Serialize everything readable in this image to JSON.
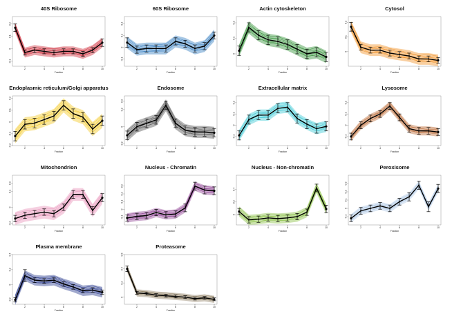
{
  "figure": {
    "xlabel": "Fraction",
    "x_ticks": [
      2,
      4,
      6,
      8,
      10
    ],
    "y_ticks_default": [
      "-0.1",
      "0",
      "0.1",
      "0.2"
    ]
  },
  "chart_data": [
    {
      "type": "line",
      "title": "40S Ribosome",
      "color": "#cc1f2e",
      "x": [
        1,
        2,
        3,
        4,
        5,
        6,
        7,
        8,
        9,
        10
      ],
      "values": [
        0.17,
        -0.03,
        -0.01,
        -0.02,
        -0.03,
        -0.02,
        -0.02,
        -0.04,
        -0.01,
        0.05
      ],
      "error": [
        0.03,
        0.02,
        0.02,
        0.02,
        0.02,
        0.02,
        0.02,
        0.02,
        0.02,
        0.03
      ],
      "spread": 0.04,
      "ylim": [
        -0.14,
        0.26
      ],
      "y_ticks": [
        "-0.1",
        "0",
        "0.1",
        "0.2"
      ]
    },
    {
      "type": "line",
      "title": "60S Ribosome",
      "color": "#2a77bd",
      "x": [
        1,
        2,
        3,
        4,
        5,
        6,
        7,
        8,
        9,
        10
      ],
      "values": [
        0.04,
        -0.02,
        -0.01,
        -0.01,
        -0.01,
        0.05,
        0.03,
        -0.01,
        0.01,
        0.1
      ],
      "error": [
        0.04,
        0.03,
        0.03,
        0.03,
        0.03,
        0.03,
        0.03,
        0.03,
        0.03,
        0.03
      ],
      "spread": 0.05,
      "ylim": [
        -0.16,
        0.26
      ],
      "y_ticks": [
        "-0.1",
        "0",
        "0.1",
        "0.2"
      ]
    },
    {
      "type": "line",
      "title": "Actin cytoskeleton",
      "color": "#258a2a",
      "x": [
        1,
        2,
        3,
        4,
        5,
        6,
        7,
        8,
        9,
        10
      ],
      "values": [
        0.02,
        0.17,
        0.12,
        0.09,
        0.08,
        0.06,
        0.03,
        0.0,
        0.01,
        -0.02
      ],
      "error": [
        0.03,
        0.03,
        0.03,
        0.03,
        0.03,
        0.03,
        0.03,
        0.03,
        0.03,
        0.03
      ],
      "spread": 0.04,
      "ylim": [
        -0.08,
        0.24
      ],
      "y_ticks": [
        "0",
        "0.1",
        "0.2"
      ]
    },
    {
      "type": "line",
      "title": "Cytosol",
      "color": "#f08a18",
      "x": [
        1,
        2,
        3,
        4,
        5,
        6,
        7,
        8,
        9,
        10
      ],
      "values": [
        0.17,
        0.03,
        0.01,
        0.01,
        -0.01,
        -0.02,
        -0.03,
        -0.05,
        -0.05,
        -0.06
      ],
      "error": [
        0.03,
        0.02,
        0.02,
        0.02,
        0.02,
        0.02,
        0.02,
        0.02,
        0.02,
        0.02
      ],
      "spread": 0.04,
      "ylim": [
        -0.1,
        0.24
      ],
      "y_ticks": [
        "0",
        "0.1",
        "0.2"
      ]
    },
    {
      "type": "line",
      "title": "Endoplasmic reticulum/Golgi apparatus",
      "color": "#f3c514",
      "x": [
        1,
        2,
        3,
        4,
        5,
        6,
        7,
        8,
        9,
        10
      ],
      "values": [
        -0.12,
        -0.02,
        -0.01,
        0.02,
        0.05,
        0.14,
        0.07,
        0.04,
        -0.06,
        0.01
      ],
      "error": [
        0.04,
        0.04,
        0.04,
        0.04,
        0.04,
        0.04,
        0.04,
        0.04,
        0.04,
        0.04
      ],
      "spread": 0.06,
      "ylim": [
        -0.2,
        0.22
      ],
      "y_ticks": [
        "-0.2",
        "-0.1",
        "0",
        "0.1",
        "0.2"
      ]
    },
    {
      "type": "line",
      "title": "Endosome",
      "color": "#4a4a4a",
      "x": [
        1,
        2,
        3,
        4,
        5,
        6,
        7,
        8,
        9,
        10
      ],
      "values": [
        -0.1,
        0.0,
        0.04,
        0.08,
        0.25,
        0.04,
        -0.04,
        -0.06,
        -0.06,
        -0.07
      ],
      "error": [
        0.05,
        0.05,
        0.05,
        0.05,
        0.05,
        0.05,
        0.05,
        0.05,
        0.05,
        0.05
      ],
      "spread": 0.07,
      "ylim": [
        -0.22,
        0.36
      ],
      "y_ticks": [
        "-0.2",
        "0",
        "0.2",
        "0.3"
      ]
    },
    {
      "type": "line",
      "title": "Extracellular matrix",
      "color": "#2ec4d2",
      "x": [
        1,
        2,
        3,
        4,
        5,
        6,
        7,
        8,
        9,
        10
      ],
      "values": [
        -0.09,
        0.05,
        0.09,
        0.09,
        0.15,
        0.16,
        0.06,
        0.01,
        -0.03,
        -0.01
      ],
      "error": [
        0.04,
        0.04,
        0.04,
        0.04,
        0.04,
        0.04,
        0.04,
        0.04,
        0.04,
        0.04
      ],
      "spread": 0.05,
      "ylim": [
        -0.18,
        0.26
      ],
      "y_ticks": [
        "-0.1",
        "0",
        "0.1",
        "0.2"
      ]
    },
    {
      "type": "line",
      "title": "Lysosome",
      "color": "#b8632c",
      "x": [
        1,
        2,
        3,
        4,
        5,
        6,
        7,
        8,
        9,
        10
      ],
      "values": [
        -0.1,
        0.0,
        0.06,
        0.1,
        0.17,
        0.07,
        -0.03,
        -0.05,
        -0.05,
        -0.06
      ],
      "error": [
        0.03,
        0.03,
        0.03,
        0.03,
        0.03,
        0.03,
        0.03,
        0.03,
        0.03,
        0.03
      ],
      "spread": 0.04,
      "ylim": [
        -0.18,
        0.26
      ],
      "y_ticks": [
        "-0.1",
        "0",
        "0.1",
        "0.2"
      ]
    },
    {
      "type": "line",
      "title": "Mitochondrion",
      "color": "#e88ab4",
      "x": [
        1,
        2,
        3,
        4,
        5,
        6,
        7,
        8,
        9,
        10
      ],
      "values": [
        -0.14,
        -0.1,
        -0.08,
        -0.06,
        -0.08,
        0.0,
        0.16,
        0.16,
        -0.04,
        0.12
      ],
      "error": [
        0.04,
        0.04,
        0.04,
        0.04,
        0.04,
        0.04,
        0.05,
        0.05,
        0.05,
        0.05
      ],
      "spread": 0.08,
      "ylim": [
        -0.22,
        0.4
      ],
      "y_ticks": [
        "-0.2",
        "0",
        "0.2",
        "0.3"
      ]
    },
    {
      "type": "line",
      "title": "Nucleus - Chromatin",
      "color": "#8b3a8f",
      "x": [
        1,
        2,
        3,
        4,
        5,
        6,
        7,
        8,
        9,
        10
      ],
      "values": [
        -0.11,
        -0.09,
        -0.08,
        -0.04,
        -0.07,
        -0.06,
        0.02,
        0.3,
        0.25,
        0.24
      ],
      "error": [
        0.04,
        0.04,
        0.04,
        0.04,
        0.04,
        0.04,
        0.05,
        0.05,
        0.05,
        0.05
      ],
      "spread": 0.06,
      "ylim": [
        -0.2,
        0.44
      ],
      "y_ticks": [
        "-0.1",
        "0",
        "0.1",
        "0.2",
        "0.3"
      ]
    },
    {
      "type": "line",
      "title": "Nucleus - Non-chromatin",
      "color": "#7fba35",
      "x": [
        1,
        2,
        3,
        4,
        5,
        6,
        7,
        8,
        9,
        10
      ],
      "values": [
        0.05,
        -0.08,
        -0.07,
        -0.05,
        -0.06,
        -0.05,
        -0.03,
        0.04,
        0.42,
        0.09
      ],
      "error": [
        0.05,
        0.05,
        0.05,
        0.05,
        0.05,
        0.05,
        0.05,
        0.05,
        0.06,
        0.06
      ],
      "spread": 0.08,
      "ylim": [
        -0.16,
        0.62
      ],
      "y_ticks": [
        "0",
        "0.2",
        "0.4"
      ]
    },
    {
      "type": "line",
      "title": "Peroxisome",
      "color": "#a9c4e3",
      "x": [
        1,
        2,
        3,
        4,
        5,
        6,
        7,
        8,
        9,
        10
      ],
      "values": [
        -0.12,
        -0.03,
        0.0,
        0.03,
        0.0,
        0.08,
        0.14,
        0.28,
        0.02,
        0.24
      ],
      "error": [
        0.04,
        0.04,
        0.04,
        0.04,
        0.04,
        0.04,
        0.05,
        0.05,
        0.06,
        0.05
      ],
      "spread": 0.05,
      "ylim": [
        -0.2,
        0.4
      ],
      "y_ticks": [
        "-0.1",
        "0",
        "0.1",
        "0.2",
        "0.3"
      ]
    },
    {
      "type": "line",
      "title": "Plasma membrane",
      "color": "#1c2d86",
      "x": [
        1,
        2,
        3,
        4,
        5,
        6,
        7,
        8,
        9,
        10
      ],
      "values": [
        -0.2,
        0.12,
        0.06,
        0.05,
        0.06,
        0.01,
        -0.03,
        -0.08,
        -0.07,
        -0.1
      ],
      "error": [
        0.03,
        0.08,
        0.03,
        0.03,
        0.03,
        0.03,
        0.03,
        0.03,
        0.03,
        0.03
      ],
      "spread": 0.07,
      "ylim": [
        -0.26,
        0.4
      ],
      "y_ticks": [
        "-0.2",
        "0",
        "0.2",
        "0.4"
      ]
    },
    {
      "type": "line",
      "title": "Proteasome",
      "color": "#8b7a5c",
      "x": [
        1,
        2,
        3,
        4,
        5,
        6,
        7,
        8,
        9,
        10
      ],
      "values": [
        0.4,
        0.06,
        0.05,
        0.03,
        0.02,
        0.01,
        0.0,
        -0.02,
        -0.01,
        -0.03
      ],
      "error": [
        0.04,
        0.02,
        0.02,
        0.02,
        0.02,
        0.02,
        0.02,
        0.02,
        0.02,
        0.02
      ],
      "spread": 0.05,
      "ylim": [
        -0.1,
        0.6
      ],
      "y_ticks": [
        "0",
        "0.2",
        "0.4",
        "0.6"
      ]
    }
  ]
}
